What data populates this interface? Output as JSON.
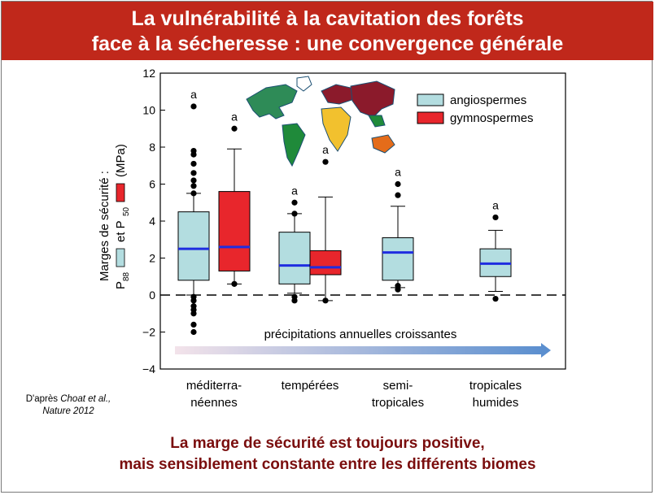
{
  "slide": {
    "title_line1": "La vulnérabilité à la cavitation des forêts",
    "title_line2": "face à la sécheresse :  une convergence générale",
    "credit_prefix": "D'après ",
    "credit_authors": "Choat et al.,",
    "credit_journal": "Nature 2012",
    "conclusion_line1": "La marge de sécurité est toujours positive,",
    "conclusion_line2": "mais sensiblement constante entre les différents biomes",
    "colors": {
      "title_bar": "#c0281b",
      "conclusion_text": "#7a0d0d",
      "angiosperm_fill": "#b3dde0",
      "gymnosperm_fill": "#e8262c",
      "median_line": "#1f2de0",
      "arrow_end": "#5b8fcf",
      "arrow_start": "#f3e3ea"
    }
  },
  "chart_data": {
    "type": "box",
    "ylabel_line1": "Marges de sécurité :",
    "ylabel_p88": "P",
    "ylabel_p88_sub": "88",
    "ylabel_and": "et P",
    "ylabel_p50_sub": "50",
    "ylabel_unit": "(MPa)",
    "ylim": [
      -4,
      12
    ],
    "yticks": [
      -4,
      -2,
      0,
      2,
      4,
      6,
      8,
      10,
      12
    ],
    "ytick_labels": [
      "−4",
      "−2",
      "0",
      "2",
      "4",
      "6",
      "8",
      "10",
      "12"
    ],
    "zero_line": "dashed",
    "categories": [
      {
        "line1": "méditerra-",
        "line2": "néennes"
      },
      {
        "line1": "tempérées",
        "line2": ""
      },
      {
        "line1": "semi-",
        "line2": "tropicales"
      },
      {
        "line1": "tropicales",
        "line2": "humides"
      }
    ],
    "legend": {
      "angiosperm": "angiospermes",
      "gymnosperm": "gymnospermes",
      "placement": "top-right"
    },
    "arrow_label": "précipitations annuelles croissantes",
    "significance_letter": "a",
    "series": [
      {
        "name": "angiospermes",
        "boxes": [
          {
            "category": 0,
            "q1": 0.8,
            "median": 2.5,
            "q3": 4.5,
            "whisker_low": 0.0,
            "whisker_high": 5.5,
            "outliers": [
              10.2,
              7.8,
              7.6,
              7.1,
              6.6,
              6.2,
              5.9,
              5.5,
              -0.1,
              -0.3,
              -0.6,
              -0.8,
              -1.0,
              -1.6,
              -2.0
            ],
            "letter": "a"
          },
          {
            "category": 1,
            "q1": 0.6,
            "median": 1.6,
            "q3": 3.4,
            "whisker_low": 0.1,
            "whisker_high": 4.4,
            "outliers": [
              5.0,
              4.4,
              -0.1,
              -0.3
            ],
            "letter": "a"
          },
          {
            "category": 2,
            "q1": 0.8,
            "median": 2.3,
            "q3": 3.1,
            "whisker_low": 0.4,
            "whisker_high": 4.8,
            "outliers": [
              6.0,
              5.4,
              0.5,
              0.3
            ],
            "letter": "a"
          },
          {
            "category": 3,
            "q1": 1.0,
            "median": 1.7,
            "q3": 2.5,
            "whisker_low": 0.2,
            "whisker_high": 3.5,
            "outliers": [
              4.2,
              -0.2
            ],
            "letter": "a"
          }
        ]
      },
      {
        "name": "gymnospermes",
        "boxes": [
          {
            "category": 0,
            "q1": 1.3,
            "median": 2.6,
            "q3": 5.6,
            "whisker_low": 0.6,
            "whisker_high": 7.9,
            "outliers": [
              9.0,
              0.6
            ],
            "letter": "a"
          },
          {
            "category": 1,
            "q1": 1.1,
            "median": 1.5,
            "q3": 2.4,
            "whisker_low": -0.3,
            "whisker_high": 5.3,
            "outliers": [
              7.2,
              -0.3
            ],
            "letter": "a"
          }
        ]
      }
    ]
  }
}
